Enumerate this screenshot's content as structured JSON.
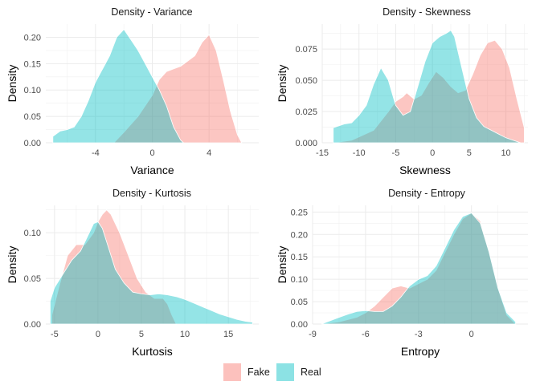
{
  "legend": {
    "fake_label": "Fake",
    "real_label": "Real",
    "fake_color": "#F8766D",
    "real_color": "#00BFC4"
  },
  "chart_data": [
    {
      "type": "area",
      "title": "Density - Variance",
      "xlabel": "Variance",
      "ylabel": "Density",
      "xlim": [
        -7.5,
        7.5
      ],
      "ylim": [
        0,
        0.225
      ],
      "xticks": [
        -4,
        0,
        4
      ],
      "yticks": [
        0,
        0.05,
        0.1,
        0.15,
        0.2
      ],
      "ytick_labels": [
        "0.00",
        "0.05",
        "0.10",
        "0.15",
        "0.20"
      ],
      "grid": true,
      "series": [
        {
          "name": "Fake",
          "x": [
            -2.7,
            -2.0,
            -1.0,
            0.0,
            0.5,
            1.0,
            1.5,
            2.0,
            2.5,
            3.0,
            3.5,
            4.0,
            4.5,
            5.0,
            5.5,
            6.0,
            6.3
          ],
          "y": [
            0.0,
            0.02,
            0.05,
            0.09,
            0.12,
            0.135,
            0.14,
            0.145,
            0.155,
            0.165,
            0.19,
            0.205,
            0.175,
            0.12,
            0.06,
            0.015,
            0.0
          ]
        },
        {
          "name": "Real",
          "x": [
            -7.0,
            -6.5,
            -6.0,
            -5.5,
            -5.0,
            -4.5,
            -4.0,
            -3.5,
            -3.0,
            -2.5,
            -2.0,
            -1.5,
            -1.0,
            -0.5,
            0.0,
            0.5,
            1.0,
            1.5,
            2.0,
            2.2
          ],
          "y": [
            0.012,
            0.022,
            0.025,
            0.03,
            0.05,
            0.08,
            0.115,
            0.14,
            0.165,
            0.2,
            0.215,
            0.195,
            0.175,
            0.15,
            0.125,
            0.1,
            0.07,
            0.03,
            0.005,
            0.0
          ]
        }
      ]
    },
    {
      "type": "area",
      "title": "Density - Skewness",
      "xlabel": "Skewness",
      "ylabel": "Density",
      "xlim": [
        -15,
        13
      ],
      "ylim": [
        0,
        0.095
      ],
      "xticks": [
        -15,
        -10,
        -5,
        0,
        5,
        10
      ],
      "yticks": [
        0,
        0.025,
        0.05,
        0.075
      ],
      "ytick_labels": [
        "0.000",
        "0.025",
        "0.050",
        "0.075"
      ],
      "grid": true,
      "series": [
        {
          "name": "Fake",
          "x": [
            -13.5,
            -11.0,
            -8.0,
            -6.0,
            -5.0,
            -4.0,
            -3.5,
            -2.5,
            -1.5,
            -0.5,
            0.5,
            1.5,
            2.5,
            3.5,
            4.5,
            5.5,
            6.5,
            7.5,
            8.5,
            9.5,
            10.5,
            11.5,
            12.5
          ],
          "y": [
            0.0,
            0.002,
            0.01,
            0.025,
            0.033,
            0.037,
            0.04,
            0.035,
            0.038,
            0.048,
            0.057,
            0.052,
            0.045,
            0.04,
            0.042,
            0.055,
            0.07,
            0.08,
            0.082,
            0.075,
            0.06,
            0.035,
            0.012
          ]
        },
        {
          "name": "Real",
          "x": [
            -13.5,
            -12.0,
            -11.0,
            -10.0,
            -9.0,
            -8.0,
            -7.0,
            -6.0,
            -5.0,
            -4.0,
            -3.0,
            -2.0,
            -1.0,
            0.0,
            1.0,
            2.0,
            2.5,
            3.0,
            4.0,
            5.0,
            6.0,
            7.0,
            8.0,
            9.0,
            10.0,
            11.0,
            12.0
          ],
          "y": [
            0.012,
            0.015,
            0.016,
            0.022,
            0.03,
            0.047,
            0.06,
            0.05,
            0.03,
            0.022,
            0.025,
            0.045,
            0.065,
            0.08,
            0.085,
            0.088,
            0.09,
            0.085,
            0.06,
            0.035,
            0.02,
            0.013,
            0.01,
            0.007,
            0.004,
            0.002,
            0.0
          ]
        }
      ]
    },
    {
      "type": "area",
      "title": "Density - Kurtosis",
      "xlabel": "Kurtosis",
      "ylabel": "Density",
      "xlim": [
        -6,
        18.5
      ],
      "ylim": [
        0,
        0.13
      ],
      "xticks": [
        -5,
        0,
        5,
        10,
        15
      ],
      "yticks": [
        0,
        0.05,
        0.1
      ],
      "ytick_labels": [
        "0.00",
        "0.05",
        "0.10"
      ],
      "grid": true,
      "series": [
        {
          "name": "Fake",
          "x": [
            -5.3,
            -4.5,
            -3.5,
            -2.5,
            -1.5,
            -0.5,
            0.0,
            0.5,
            1.0,
            1.5,
            2.5,
            3.5,
            4.5,
            5.5,
            6.5,
            7.5,
            8.0,
            8.5,
            9.0
          ],
          "y": [
            0.01,
            0.04,
            0.075,
            0.087,
            0.087,
            0.1,
            0.112,
            0.12,
            0.125,
            0.12,
            0.1,
            0.075,
            0.05,
            0.035,
            0.028,
            0.028,
            0.022,
            0.01,
            0.0
          ]
        },
        {
          "name": "Real",
          "x": [
            -5.5,
            -5.0,
            -4.0,
            -3.0,
            -2.0,
            -1.0,
            -0.5,
            0.0,
            0.5,
            1.0,
            2.0,
            3.0,
            4.0,
            5.0,
            6.0,
            7.0,
            8.0,
            9.0,
            10.0,
            11.0,
            12.0,
            13.0,
            14.0,
            15.0,
            16.0,
            17.0,
            17.8
          ],
          "y": [
            0.025,
            0.04,
            0.055,
            0.07,
            0.08,
            0.1,
            0.11,
            0.112,
            0.105,
            0.09,
            0.06,
            0.045,
            0.035,
            0.033,
            0.032,
            0.033,
            0.032,
            0.03,
            0.027,
            0.023,
            0.019,
            0.015,
            0.011,
            0.008,
            0.005,
            0.003,
            0.002
          ]
        }
      ]
    },
    {
      "type": "area",
      "title": "Density - Entropy",
      "xlabel": "Entropy",
      "ylabel": "Density",
      "xlim": [
        -9,
        3.2
      ],
      "ylim": [
        0,
        0.265
      ],
      "xticks": [
        -9,
        -6,
        -3,
        0
      ],
      "yticks": [
        0,
        0.05,
        0.1,
        0.15,
        0.2,
        0.25
      ],
      "ytick_labels": [
        "0.00",
        "0.05",
        "0.10",
        "0.15",
        "0.20",
        "0.25"
      ],
      "grid": true,
      "series": [
        {
          "name": "Fake",
          "x": [
            -8.5,
            -7.5,
            -6.5,
            -6.0,
            -5.5,
            -5.0,
            -4.5,
            -4.0,
            -3.5,
            -3.0,
            -2.5,
            -2.0,
            -1.5,
            -1.0,
            -0.5,
            0.0,
            0.5,
            1.0,
            1.5,
            2.0,
            2.5
          ],
          "y": [
            0.0,
            0.005,
            0.015,
            0.025,
            0.04,
            0.06,
            0.08,
            0.085,
            0.08,
            0.09,
            0.1,
            0.12,
            0.16,
            0.2,
            0.235,
            0.248,
            0.23,
            0.16,
            0.08,
            0.02,
            0.0
          ]
        },
        {
          "name": "Real",
          "x": [
            -8.5,
            -7.5,
            -7.0,
            -6.5,
            -6.0,
            -5.5,
            -5.0,
            -4.5,
            -4.0,
            -3.5,
            -3.0,
            -2.5,
            -2.0,
            -1.5,
            -1.0,
            -0.5,
            0.0,
            0.5,
            1.0,
            1.5,
            2.0,
            2.5
          ],
          "y": [
            0.0,
            0.015,
            0.022,
            0.028,
            0.03,
            0.028,
            0.028,
            0.04,
            0.06,
            0.085,
            0.1,
            0.108,
            0.13,
            0.17,
            0.21,
            0.24,
            0.248,
            0.225,
            0.16,
            0.08,
            0.025,
            0.005
          ]
        }
      ]
    }
  ]
}
